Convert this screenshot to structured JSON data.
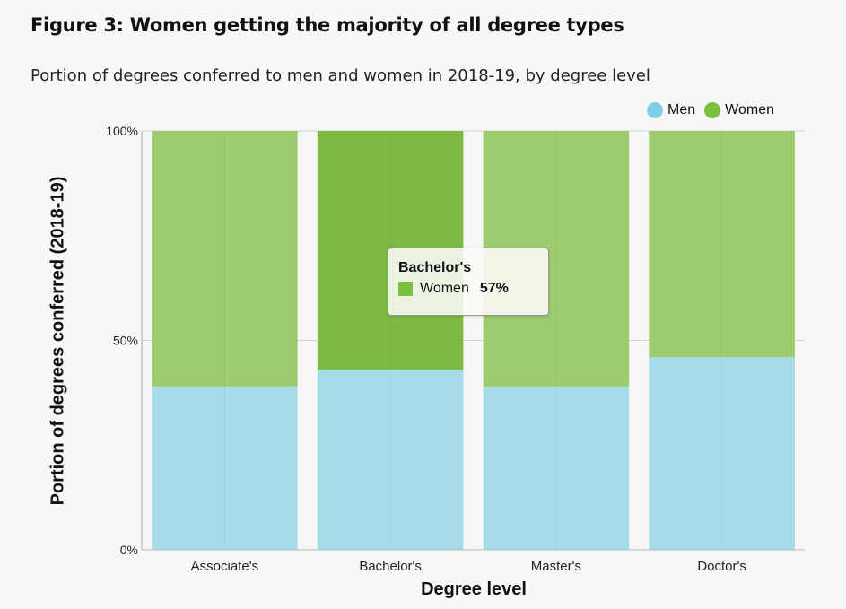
{
  "title": "Figure 3: Women getting the majority of all degree types",
  "subtitle": "Portion of degrees conferred to men and women in 2018-19, by degree level",
  "legend": [
    {
      "label": "Men",
      "color": "#7fd0e6"
    },
    {
      "label": "Women",
      "color": "#7bbf3e"
    }
  ],
  "tooltip": {
    "title": "Bachelor's",
    "series": "Women",
    "value": "57%",
    "color": "#7bbf3e"
  },
  "chart_data": {
    "type": "bar",
    "stacked": true,
    "categories": [
      "Associate's",
      "Bachelor's",
      "Master's",
      "Doctor's"
    ],
    "series": [
      {
        "name": "Men",
        "values": [
          39,
          43,
          39,
          46
        ],
        "color": "#a6dce8"
      },
      {
        "name": "Women",
        "values": [
          61,
          57,
          61,
          54
        ],
        "color": "#9ecb6e"
      }
    ],
    "highlight": {
      "category_index": 1,
      "series": "Women",
      "color": "#7dba42"
    },
    "xlabel": "Degree level",
    "ylabel": "Portion of degrees conferred (2018-19)",
    "ylim": [
      0,
      100
    ],
    "yticks": [
      0,
      50,
      100
    ],
    "ytick_labels": [
      "0%",
      "50%",
      "100%"
    ],
    "grid": true,
    "legend_position": "top-right"
  }
}
